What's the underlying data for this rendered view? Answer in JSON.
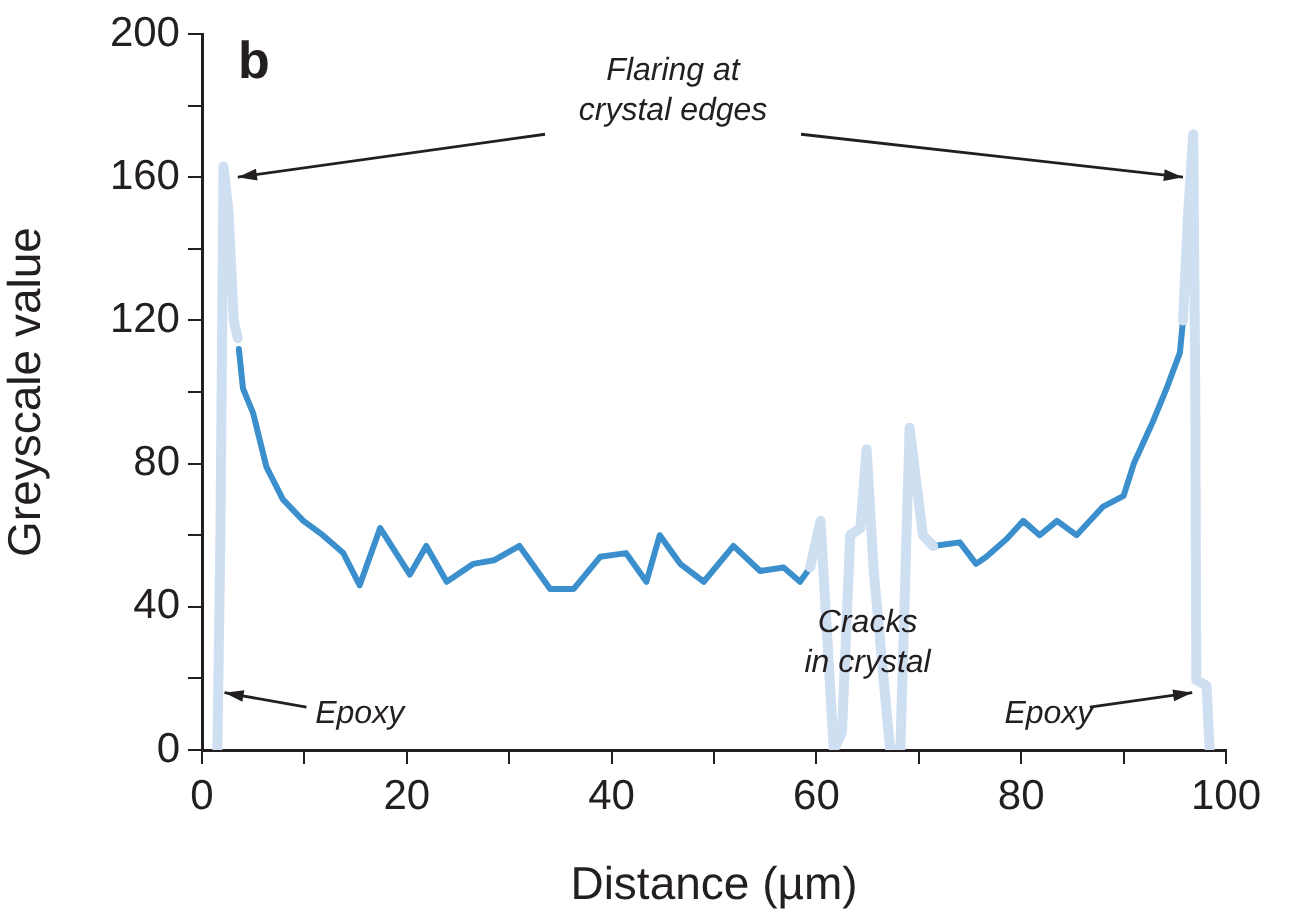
{
  "chart_data": {
    "type": "line",
    "title": "b",
    "xlabel": "Distance (µm)",
    "ylabel": "Greyscale value",
    "xlim": [
      0,
      100
    ],
    "xticks": [
      0,
      {
        "value": 10,
        "label": null
      },
      20,
      {
        "value": 30,
        "label": null
      },
      40,
      {
        "value": 50,
        "label": null
      },
      60,
      {
        "value": 70,
        "label": null
      },
      80,
      {
        "value": 90,
        "label": null
      },
      100
    ],
    "ylim": [
      0,
      200
    ],
    "yticks": [
      0,
      {
        "value": 20,
        "label": null
      },
      40,
      {
        "value": 60,
        "label": null
      },
      80,
      {
        "value": 100,
        "label": null
      },
      120,
      {
        "value": 140,
        "label": null
      },
      160,
      {
        "value": 180,
        "label": null
      },
      200
    ],
    "grid": false,
    "legend": false,
    "marker": "none",
    "line_style": "solid",
    "series": [
      {
        "color": "#cfdff2",
        "x": [
          1.5,
          1.8,
          2.1,
          2.6,
          3.1,
          3.5,
          null,
          59.4,
          60.4,
          61.7,
          62.5,
          63.3,
          64.3,
          64.9,
          65.6,
          67.2,
          68.2,
          69.1,
          70.4,
          71.4,
          null,
          95.8,
          96.3,
          96.8,
          97.0,
          97.1,
          98.1,
          98.4
        ],
        "values": [
          0,
          60,
          163,
          150,
          120,
          115,
          null,
          51,
          64,
          0,
          5,
          60,
          62,
          84,
          50,
          0,
          0,
          90,
          60,
          57,
          null,
          120,
          150,
          172,
          100,
          19.5,
          18,
          0
        ]
      },
      {
        "color": "#3a8fcc",
        "x": [
          3.6,
          4.0,
          5.0,
          6.3,
          7.9,
          9.9,
          11.8,
          13.8,
          15.4,
          17.4,
          20.3,
          21.9,
          23.9,
          26.5,
          28.5,
          31,
          34,
          36.3,
          38.9,
          41.4,
          43.4,
          44.7,
          46.7,
          49,
          51.9,
          54.5,
          56.8,
          58.4,
          59.4,
          null,
          71.4,
          74,
          75.6,
          76.6,
          78.6,
          80.2,
          81.8,
          83.5,
          85.4,
          88,
          90,
          91,
          92.9,
          94.2,
          95.5,
          95.8
        ],
        "values": [
          112,
          101,
          94,
          79,
          70,
          64,
          60,
          55,
          46,
          62,
          49,
          57,
          47,
          52,
          53,
          57,
          45,
          45,
          54,
          55,
          47,
          60,
          52,
          47,
          57,
          50,
          51,
          47,
          51,
          null,
          57,
          58,
          52,
          54,
          59,
          64,
          60,
          64,
          60,
          68,
          71,
          80,
          92,
          101,
          111,
          120
        ]
      }
    ],
    "annotations": [
      {
        "text": "Flaring at\ncrystal edges",
        "x": 3.5,
        "y": 160
      },
      {
        "text": "Epoxy",
        "x": 2.2,
        "y": 16
      },
      {
        "text": "Cracks\nin crystal",
        "x": 65,
        "y": 30
      },
      {
        "text": "Epoxy",
        "x": 96.7,
        "y": 16
      }
    ]
  }
}
